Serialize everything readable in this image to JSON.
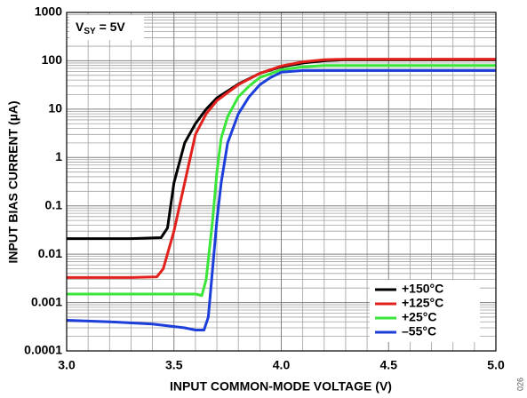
{
  "chart_data": {
    "type": "line",
    "xlabel": "INPUT COMMON-MODE VOLTAGE (V)",
    "ylabel": "INPUT BIAS CURRENT (µA)",
    "annotation": {
      "main": "V",
      "sub": "SY",
      "rest": " = 5V"
    },
    "figure_id": "026",
    "xlim": [
      3.0,
      5.0
    ],
    "xticks": [
      {
        "value": 3.0,
        "label": "3.0"
      },
      3.5,
      {
        "value": 4.0,
        "label": "4.0"
      },
      4.5,
      {
        "value": 5.0,
        "label": "5.0"
      }
    ],
    "ylim": [
      0.0001,
      1000
    ],
    "yticks": [
      0.0001,
      0.001,
      0.01,
      0.1,
      1,
      10,
      100,
      1000
    ],
    "log_y": true,
    "grid": true,
    "legend": "lower right",
    "series": [
      {
        "name": "+150°C",
        "color": "#000000",
        "x": [
          3.0,
          3.3,
          3.44,
          3.47,
          3.5,
          3.55,
          3.6,
          3.65,
          3.7,
          3.8,
          3.9,
          4.0,
          4.1,
          4.2,
          4.3,
          5.0
        ],
        "values": [
          0.021,
          0.021,
          0.022,
          0.035,
          0.3,
          2,
          5,
          10,
          17,
          33,
          55,
          75,
          90,
          100,
          105,
          105
        ]
      },
      {
        "name": "+125°C",
        "color": "#e3211c",
        "x": [
          3.0,
          3.3,
          3.42,
          3.45,
          3.5,
          3.55,
          3.6,
          3.65,
          3.7,
          3.8,
          3.9,
          4.0,
          4.1,
          4.2,
          4.3,
          5.0
        ],
        "values": [
          0.0033,
          0.0033,
          0.0034,
          0.005,
          0.03,
          0.3,
          3,
          8,
          15,
          32,
          55,
          78,
          95,
          105,
          108,
          108
        ]
      },
      {
        "name": "+25°C",
        "color": "#3ae63a",
        "x": [
          3.0,
          3.4,
          3.6,
          3.63,
          3.65,
          3.68,
          3.7,
          3.72,
          3.75,
          3.8,
          3.85,
          3.9,
          4.0,
          4.1,
          4.2,
          5.0
        ],
        "values": [
          0.0015,
          0.0015,
          0.0015,
          0.0014,
          0.003,
          0.05,
          0.5,
          2.5,
          7,
          18,
          30,
          45,
          65,
          75,
          80,
          80
        ]
      },
      {
        "name": "–55°C",
        "color": "#1c3fdb",
        "x": [
          3.0,
          3.2,
          3.4,
          3.55,
          3.6,
          3.64,
          3.66,
          3.68,
          3.7,
          3.72,
          3.75,
          3.8,
          3.85,
          3.9,
          3.95,
          4.0,
          4.1,
          5.0
        ],
        "values": [
          0.00043,
          0.0004,
          0.00036,
          0.0003,
          0.00027,
          0.00027,
          0.0005,
          0.005,
          0.05,
          0.3,
          2,
          8,
          18,
          32,
          45,
          58,
          63,
          63
        ]
      }
    ]
  }
}
